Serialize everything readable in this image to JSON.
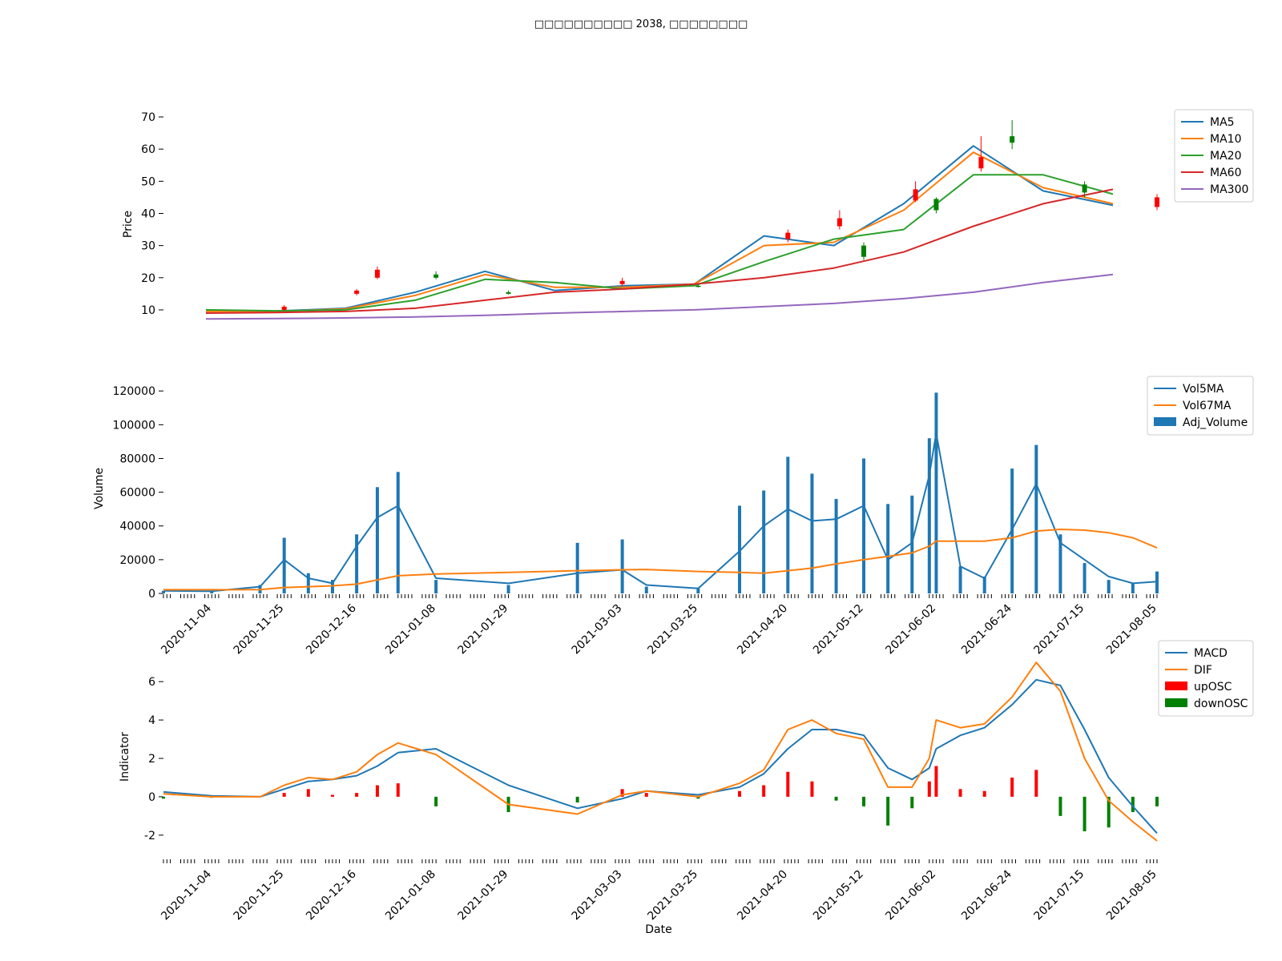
{
  "figure": {
    "title": "□□□□□□□□□□ 2038, □□□□□□□□"
  },
  "colors": {
    "blue": "#1f77b4",
    "orange": "#ff7f0e",
    "green": "#2ca02c",
    "red": "#d62728",
    "purple": "#9467bd",
    "candle_up": "#ff0000",
    "candle_down": "#008000",
    "osc_up": "#ff0000",
    "osc_down": "#008000"
  },
  "chart_data": [
    {
      "type": "line",
      "id": "price",
      "ylabel": "Price",
      "xlabel": "",
      "ylim": [
        6,
        72
      ],
      "yticks": [
        10,
        20,
        30,
        40,
        50,
        60,
        70
      ],
      "x": [
        "2020-10-21",
        "2020-11-04",
        "2020-11-25",
        "2020-12-16",
        "2021-01-08",
        "2021-01-29",
        "2021-03-03",
        "2021-03-25",
        "2021-04-20",
        "2021-05-12",
        "2021-06-02",
        "2021-06-24",
        "2021-07-15",
        "2021-08-05"
      ],
      "x_tick_labels_shown": false,
      "legend": "top-right",
      "series": [
        {
          "name": "MA5",
          "color_key": "blue",
          "values": [
            9.6,
            9.6,
            10.5,
            15.5,
            22.0,
            16.0,
            17.5,
            18.0,
            33.0,
            30.0,
            43.0,
            61.0,
            47.0,
            42.5
          ]
        },
        {
          "name": "MA10",
          "color_key": "orange",
          "values": [
            9.5,
            9.5,
            10.3,
            14.5,
            21.0,
            17.0,
            17.0,
            18.0,
            30.0,
            31.0,
            41.0,
            59.0,
            48.0,
            43.0
          ]
        },
        {
          "name": "MA20",
          "color_key": "green",
          "values": [
            10.0,
            9.7,
            10.0,
            13.0,
            19.5,
            18.5,
            16.5,
            17.5,
            25.0,
            32.0,
            35.0,
            52.0,
            52.0,
            46.0
          ]
        },
        {
          "name": "MA60",
          "color_key": "red",
          "values": [
            9.0,
            9.2,
            9.5,
            10.5,
            13.0,
            15.5,
            16.5,
            18.0,
            20.0,
            23.0,
            28.0,
            36.0,
            43.0,
            47.5
          ]
        },
        {
          "name": "MA300",
          "color_key": "purple",
          "values": [
            7.2,
            7.3,
            7.5,
            7.8,
            8.3,
            9.0,
            9.5,
            10.0,
            11.0,
            12.0,
            13.5,
            15.5,
            18.5,
            21.0
          ]
        }
      ],
      "candles": [
        {
          "date": "2020-11-25",
          "open": 10.0,
          "close": 11.0,
          "low": 9.8,
          "high": 11.5
        },
        {
          "date": "2020-12-16",
          "open": 15.0,
          "close": 16.0,
          "low": 14.5,
          "high": 16.5
        },
        {
          "date": "2020-12-22",
          "open": 20.0,
          "close": 22.5,
          "low": 19.5,
          "high": 23.5
        },
        {
          "date": "2021-01-08",
          "open": 21.0,
          "close": 20.0,
          "low": 19.5,
          "high": 22.0
        },
        {
          "date": "2021-01-29",
          "open": 15.5,
          "close": 15.0,
          "low": 14.8,
          "high": 16.0
        },
        {
          "date": "2021-03-03",
          "open": 18.0,
          "close": 19.0,
          "low": 17.5,
          "high": 20.0
        },
        {
          "date": "2021-03-25",
          "open": 17.5,
          "close": 17.3,
          "low": 17.0,
          "high": 18.0
        },
        {
          "date": "2021-04-20",
          "open": 32.0,
          "close": 34.0,
          "low": 31.0,
          "high": 35.0
        },
        {
          "date": "2021-05-05",
          "open": 36.0,
          "close": 38.5,
          "low": 35.0,
          "high": 41.0
        },
        {
          "date": "2021-05-12",
          "open": 30.0,
          "close": 26.5,
          "low": 25.5,
          "high": 31.0
        },
        {
          "date": "2021-05-27",
          "open": 44.0,
          "close": 47.5,
          "low": 43.5,
          "high": 50.0
        },
        {
          "date": "2021-06-02",
          "open": 44.5,
          "close": 41.0,
          "low": 40.0,
          "high": 45.0
        },
        {
          "date": "2021-06-15",
          "open": 54.0,
          "close": 57.5,
          "low": 53.0,
          "high": 64.0
        },
        {
          "date": "2021-06-24",
          "open": 64.0,
          "close": 62.0,
          "low": 60.0,
          "high": 69.0
        },
        {
          "date": "2021-07-15",
          "open": 49.0,
          "close": 46.5,
          "low": 45.0,
          "high": 50.0
        },
        {
          "date": "2021-08-05",
          "open": 42.0,
          "close": 45.0,
          "low": 41.0,
          "high": 46.0
        }
      ]
    },
    {
      "type": "bar",
      "id": "volume",
      "ylabel": "Volume",
      "xlabel": "",
      "ylim": [
        0,
        122000
      ],
      "yticks": [
        0,
        20000,
        40000,
        60000,
        80000,
        100000,
        120000
      ],
      "x_tick_labels": [
        "2020-11-04",
        "2020-11-25",
        "2020-12-16",
        "2021-01-08",
        "2021-01-29",
        "2021-03-03",
        "2021-03-25",
        "2021-04-20",
        "2021-05-12",
        "2021-06-02",
        "2021-06-24",
        "2021-07-15",
        "2021-08-05"
      ],
      "legend": "top-right",
      "categories": [
        "2020-10-21",
        "2020-11-04",
        "2020-11-18",
        "2020-11-25",
        "2020-12-02",
        "2020-12-09",
        "2020-12-16",
        "2020-12-22",
        "2020-12-28",
        "2021-01-08",
        "2021-01-29",
        "2021-02-18",
        "2021-03-03",
        "2021-03-10",
        "2021-03-25",
        "2021-04-06",
        "2021-04-13",
        "2021-04-20",
        "2021-04-27",
        "2021-05-04",
        "2021-05-12",
        "2021-05-19",
        "2021-05-26",
        "2021-05-31",
        "2021-06-02",
        "2021-06-09",
        "2021-06-16",
        "2021-06-24",
        "2021-07-01",
        "2021-07-08",
        "2021-07-15",
        "2021-07-22",
        "2021-07-29",
        "2021-08-05"
      ],
      "series": [
        {
          "name": "Adj_Volume",
          "color_key": "blue",
          "kind": "bar",
          "values": [
            1500,
            1200,
            5000,
            33000,
            12000,
            8000,
            35000,
            63000,
            72000,
            8000,
            5000,
            30000,
            32000,
            4000,
            3000,
            52000,
            61000,
            81000,
            71000,
            56000,
            80000,
            53000,
            58000,
            92000,
            119000,
            16000,
            10000,
            74000,
            88000,
            35000,
            18000,
            8000,
            6000,
            13000
          ]
        },
        {
          "name": "Vol5MA",
          "color_key": "blue",
          "kind": "line",
          "values": [
            1500,
            1300,
            4000,
            20000,
            9000,
            6000,
            28000,
            45000,
            52000,
            9000,
            6000,
            12000,
            14000,
            5000,
            3000,
            25000,
            40000,
            50000,
            43000,
            44000,
            52000,
            20000,
            30000,
            70000,
            95000,
            16000,
            9000,
            38000,
            65000,
            30000,
            20000,
            10000,
            6000,
            7000
          ]
        },
        {
          "name": "Vol67MA",
          "color_key": "orange",
          "kind": "line",
          "values": [
            2200,
            2200,
            2300,
            3500,
            4000,
            4500,
            5500,
            8000,
            10500,
            11500,
            12500,
            13500,
            14000,
            14200,
            13000,
            12500,
            12000,
            13500,
            15000,
            17500,
            20000,
            22000,
            24000,
            28000,
            31000,
            31000,
            31000,
            33000,
            37000,
            38000,
            37500,
            36000,
            33000,
            27000
          ]
        }
      ]
    },
    {
      "type": "line",
      "id": "indicator",
      "ylabel": "Indicator",
      "xlabel": "Date",
      "ylim": [
        -2.8,
        7.3
      ],
      "yticks": [
        -2,
        0,
        2,
        4,
        6
      ],
      "x_tick_labels": [
        "2020-11-04",
        "2020-11-25",
        "2020-12-16",
        "2021-01-08",
        "2021-01-29",
        "2021-03-03",
        "2021-03-25",
        "2021-04-20",
        "2021-05-12",
        "2021-06-02",
        "2021-06-24",
        "2021-07-15",
        "2021-08-05"
      ],
      "legend": "top-right",
      "categories": [
        "2020-10-21",
        "2020-11-04",
        "2020-11-18",
        "2020-11-25",
        "2020-12-02",
        "2020-12-09",
        "2020-12-16",
        "2020-12-22",
        "2020-12-28",
        "2021-01-08",
        "2021-01-29",
        "2021-02-18",
        "2021-03-03",
        "2021-03-10",
        "2021-03-25",
        "2021-04-06",
        "2021-04-13",
        "2021-04-20",
        "2021-04-27",
        "2021-05-04",
        "2021-05-12",
        "2021-05-19",
        "2021-05-26",
        "2021-05-31",
        "2021-06-02",
        "2021-06-09",
        "2021-06-16",
        "2021-06-24",
        "2021-07-01",
        "2021-07-08",
        "2021-07-15",
        "2021-07-22",
        "2021-07-29",
        "2021-08-05"
      ],
      "series": [
        {
          "name": "MACD",
          "color_key": "blue",
          "kind": "line",
          "values": [
            0.25,
            0.05,
            0.0,
            0.4,
            0.8,
            0.9,
            1.1,
            1.6,
            2.3,
            2.5,
            0.6,
            -0.6,
            -0.1,
            0.3,
            0.1,
            0.5,
            1.2,
            2.5,
            3.5,
            3.5,
            3.2,
            1.5,
            0.9,
            1.5,
            2.5,
            3.2,
            3.6,
            4.8,
            6.1,
            5.8,
            3.5,
            1.0,
            -0.5,
            -1.9
          ]
        },
        {
          "name": "DIF",
          "color_key": "orange",
          "kind": "line",
          "values": [
            0.15,
            0.0,
            0.0,
            0.6,
            1.0,
            0.9,
            1.3,
            2.2,
            2.8,
            2.2,
            -0.4,
            -0.9,
            0.1,
            0.3,
            0.0,
            0.7,
            1.4,
            3.5,
            4.0,
            3.3,
            3.0,
            0.5,
            0.5,
            2.0,
            4.0,
            3.6,
            3.8,
            5.2,
            7.0,
            5.5,
            2.0,
            -0.2,
            -1.3,
            -2.3
          ]
        },
        {
          "name": "upOSC",
          "color_key": "osc_up",
          "kind": "bar",
          "values": [
            0,
            0,
            0,
            0.2,
            0.4,
            0.1,
            0.2,
            0.6,
            0.7,
            0,
            0,
            0,
            0.4,
            0.2,
            0,
            0.3,
            0.6,
            1.3,
            0.8,
            0,
            0,
            0,
            0,
            0.8,
            1.6,
            0.4,
            0.3,
            1.0,
            1.4,
            0,
            0,
            0,
            0,
            0
          ]
        },
        {
          "name": "downOSC",
          "color_key": "osc_down",
          "kind": "bar",
          "values": [
            -0.1,
            -0.05,
            0,
            0,
            0,
            0,
            0,
            0,
            0,
            -0.5,
            -0.8,
            -0.3,
            0,
            0,
            -0.1,
            0,
            0,
            0,
            0,
            -0.2,
            -0.5,
            -1.5,
            -0.6,
            0,
            0,
            0,
            0,
            0,
            0,
            -1.0,
            -1.8,
            -1.6,
            -0.8,
            -0.5
          ]
        }
      ]
    }
  ]
}
